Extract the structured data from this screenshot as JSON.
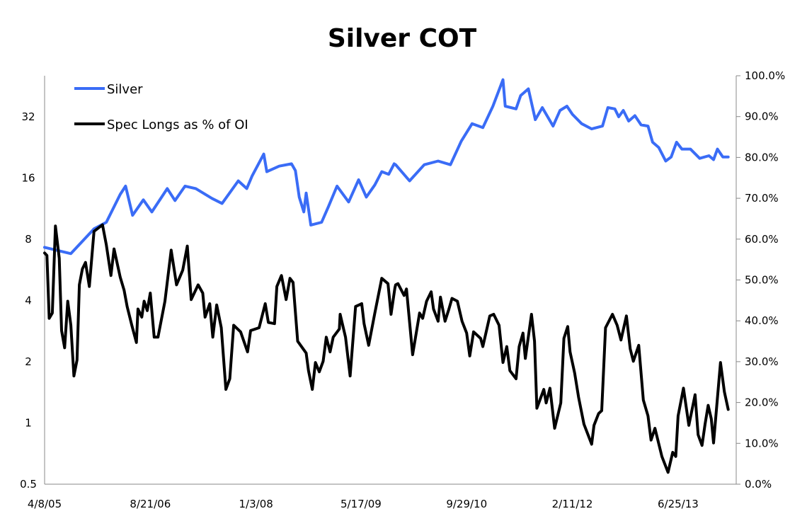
{
  "chart_data": {
    "type": "line",
    "title": "Silver COT",
    "xlabel": "",
    "ylabel_left": "",
    "ylabel_right": "",
    "x_units": "decimal year",
    "xlim": [
      2005.27,
      2014.13
    ],
    "xticks": [
      {
        "label": "4/8/05",
        "x": 2005.27
      },
      {
        "label": "8/21/06",
        "x": 2006.64
      },
      {
        "label": "1/3/08",
        "x": 2008.01
      },
      {
        "label": "5/17/09",
        "x": 2009.37
      },
      {
        "label": "9/29/10",
        "x": 2010.74
      },
      {
        "label": "2/11/12",
        "x": 2012.11
      },
      {
        "label": "6/25/13",
        "x": 2013.48
      }
    ],
    "left_axis": {
      "scale": "log2",
      "ylim": [
        0.5,
        51
      ],
      "ticks": [
        {
          "label": "0.5",
          "v": 0.5
        },
        {
          "label": "1",
          "v": 1
        },
        {
          "label": "2",
          "v": 2
        },
        {
          "label": "4",
          "v": 4
        },
        {
          "label": "8",
          "v": 8
        },
        {
          "label": "16",
          "v": 16
        },
        {
          "label": "32",
          "v": 32
        }
      ]
    },
    "right_axis": {
      "scale": "linear",
      "ylim": [
        0,
        100
      ],
      "ticks": [
        {
          "label": "0.0%",
          "v": 0
        },
        {
          "label": "10.0%",
          "v": 10
        },
        {
          "label": "20.0%",
          "v": 20
        },
        {
          "label": "30.0%",
          "v": 30
        },
        {
          "label": "40.0%",
          "v": 40
        },
        {
          "label": "50.0%",
          "v": 50
        },
        {
          "label": "60.0%",
          "v": 60
        },
        {
          "label": "70.0%",
          "v": 70
        },
        {
          "label": "80.0%",
          "v": 80
        },
        {
          "label": "90.0%",
          "v": 90
        },
        {
          "label": "100.0%",
          "v": 100
        }
      ]
    },
    "grid": false,
    "legend_position": "top-left",
    "series": [
      {
        "name": "Silver",
        "axis": "left",
        "color": "#3a6cf6",
        "x": [
          2005.27,
          2005.61,
          2005.91,
          2006.07,
          2006.25,
          2006.32,
          2006.41,
          2006.55,
          2006.66,
          2006.86,
          2006.96,
          2007.09,
          2007.23,
          2007.44,
          2007.57,
          2007.78,
          2007.89,
          2007.96,
          2008.11,
          2008.15,
          2008.31,
          2008.47,
          2008.52,
          2008.57,
          2008.63,
          2008.66,
          2008.72,
          2008.86,
          2008.95,
          2009.06,
          2009.21,
          2009.34,
          2009.44,
          2009.55,
          2009.64,
          2009.73,
          2009.8,
          2009.82,
          2010.0,
          2010.19,
          2010.37,
          2010.53,
          2010.67,
          2010.81,
          2010.95,
          2011.08,
          2011.21,
          2011.24,
          2011.38,
          2011.44,
          2011.54,
          2011.63,
          2011.72,
          2011.86,
          2011.95,
          2012.04,
          2012.11,
          2012.23,
          2012.36,
          2012.5,
          2012.57,
          2012.66,
          2012.71,
          2012.77,
          2012.84,
          2012.92,
          2013.0,
          2013.09,
          2013.15,
          2013.23,
          2013.32,
          2013.39,
          2013.46,
          2013.53,
          2013.64,
          2013.76,
          2013.88,
          2013.94,
          2013.99,
          2014.06,
          2014.13
        ],
        "values": [
          7.3,
          6.8,
          9.0,
          9.7,
          13.3,
          14.6,
          10.5,
          12.5,
          10.9,
          14.2,
          12.4,
          14.6,
          14.2,
          12.7,
          12.0,
          15.5,
          14.2,
          16.4,
          21.0,
          17.2,
          18.3,
          18.8,
          17.4,
          12.9,
          10.9,
          13.5,
          9.4,
          9.7,
          11.6,
          14.6,
          12.2,
          15.7,
          12.9,
          14.8,
          17.2,
          16.7,
          18.8,
          18.6,
          15.5,
          18.6,
          19.4,
          18.6,
          24.3,
          29.6,
          28.3,
          36.1,
          48.7,
          36.1,
          35.0,
          40.7,
          43.9,
          31.0,
          35.5,
          28.8,
          34.4,
          36.1,
          32.9,
          29.6,
          27.9,
          28.8,
          35.5,
          35.0,
          32.0,
          34.4,
          30.5,
          32.4,
          29.2,
          28.8,
          24.0,
          22.6,
          19.4,
          20.3,
          24.0,
          22.2,
          22.2,
          20.0,
          20.6,
          19.7,
          22.2,
          20.3,
          20.3
        ]
      },
      {
        "name": "Spec Longs as % of OI",
        "axis": "right",
        "color": "#000000",
        "x": [
          2005.27,
          2005.3,
          2005.33,
          2005.37,
          2005.41,
          2005.46,
          2005.49,
          2005.53,
          2005.57,
          2005.61,
          2005.65,
          2005.69,
          2005.72,
          2005.76,
          2005.8,
          2005.85,
          2005.91,
          2006.02,
          2006.07,
          2006.13,
          2006.17,
          2006.25,
          2006.3,
          2006.34,
          2006.4,
          2006.46,
          2006.48,
          2006.53,
          2006.56,
          2006.6,
          2006.64,
          2006.69,
          2006.74,
          2006.83,
          2006.91,
          2006.98,
          2007.06,
          2007.12,
          2007.17,
          2007.26,
          2007.32,
          2007.35,
          2007.41,
          2007.45,
          2007.5,
          2007.56,
          2007.62,
          2007.67,
          2007.72,
          2007.81,
          2007.9,
          2007.94,
          2008.05,
          2008.13,
          2008.17,
          2008.25,
          2008.28,
          2008.34,
          2008.4,
          2008.45,
          2008.49,
          2008.55,
          2008.66,
          2008.69,
          2008.74,
          2008.78,
          2008.83,
          2008.88,
          2008.92,
          2008.97,
          2009.01,
          2009.09,
          2009.1,
          2009.17,
          2009.23,
          2009.3,
          2009.38,
          2009.41,
          2009.47,
          2009.55,
          2009.64,
          2009.72,
          2009.76,
          2009.81,
          2009.82,
          2009.85,
          2009.93,
          2009.96,
          2010.04,
          2010.13,
          2010.17,
          2010.22,
          2010.28,
          2010.31,
          2010.37,
          2010.4,
          2010.46,
          2010.51,
          2010.55,
          2010.62,
          2010.68,
          2010.74,
          2010.78,
          2010.83,
          2010.92,
          2010.95,
          2011.04,
          2011.09,
          2011.16,
          2011.21,
          2011.26,
          2011.3,
          2011.38,
          2011.42,
          2011.47,
          2011.5,
          2011.58,
          2011.62,
          2011.65,
          2011.74,
          2011.77,
          2011.82,
          2011.88,
          2011.96,
          2012.0,
          2012.05,
          2012.08,
          2012.14,
          2012.19,
          2012.26,
          2012.36,
          2012.39,
          2012.45,
          2012.49,
          2012.54,
          2012.63,
          2012.69,
          2012.74,
          2012.81,
          2012.86,
          2012.9,
          2012.97,
          2013.03,
          2013.09,
          2013.13,
          2013.18,
          2013.27,
          2013.35,
          2013.41,
          2013.45,
          2013.48,
          2013.55,
          2013.62,
          2013.7,
          2013.74,
          2013.79,
          2013.83,
          2013.87,
          2013.91,
          2013.94,
          2014.03,
          2014.08,
          2014.13
        ],
        "values": [
          56.6,
          56.0,
          40.6,
          41.9,
          63.2,
          55.3,
          37.6,
          33.4,
          44.8,
          38.9,
          26.5,
          30.4,
          48.8,
          52.7,
          54.3,
          48.4,
          61.9,
          63.5,
          58.6,
          51.1,
          57.6,
          50.7,
          47.5,
          43.5,
          38.9,
          34.7,
          42.9,
          40.9,
          44.8,
          42.5,
          46.8,
          36.0,
          36.0,
          44.8,
          57.3,
          48.8,
          52.4,
          58.3,
          45.2,
          48.8,
          46.8,
          40.9,
          44.2,
          36.0,
          43.9,
          38.3,
          23.2,
          25.8,
          38.9,
          37.3,
          32.4,
          37.6,
          38.3,
          44.2,
          39.6,
          39.3,
          48.4,
          51.1,
          45.2,
          50.4,
          49.4,
          35.0,
          32.1,
          27.8,
          23.2,
          29.8,
          27.5,
          30.1,
          36.0,
          32.4,
          36.0,
          38.0,
          41.6,
          36.0,
          26.5,
          43.5,
          44.2,
          39.3,
          34.0,
          41.9,
          50.4,
          49.1,
          41.6,
          48.1,
          48.8,
          49.1,
          46.2,
          47.8,
          31.7,
          41.9,
          40.6,
          44.8,
          47.1,
          42.9,
          39.9,
          45.8,
          39.9,
          42.9,
          45.5,
          44.8,
          39.9,
          37.0,
          31.4,
          37.3,
          35.7,
          33.7,
          41.2,
          41.6,
          38.9,
          29.8,
          33.7,
          27.8,
          25.8,
          33.7,
          37.0,
          30.8,
          41.6,
          35.0,
          18.6,
          23.2,
          19.9,
          23.5,
          13.7,
          19.9,
          35.7,
          38.6,
          32.4,
          27.2,
          21.3,
          14.7,
          9.8,
          14.4,
          17.3,
          18.0,
          38.3,
          41.6,
          38.9,
          35.3,
          41.2,
          33.1,
          30.1,
          34.0,
          20.6,
          16.7,
          10.8,
          13.7,
          6.8,
          2.9,
          7.8,
          6.8,
          16.7,
          23.5,
          14.4,
          21.9,
          12.1,
          9.5,
          14.7,
          19.3,
          16.0,
          10.1,
          29.8,
          22.6,
          18.3
        ]
      }
    ]
  }
}
